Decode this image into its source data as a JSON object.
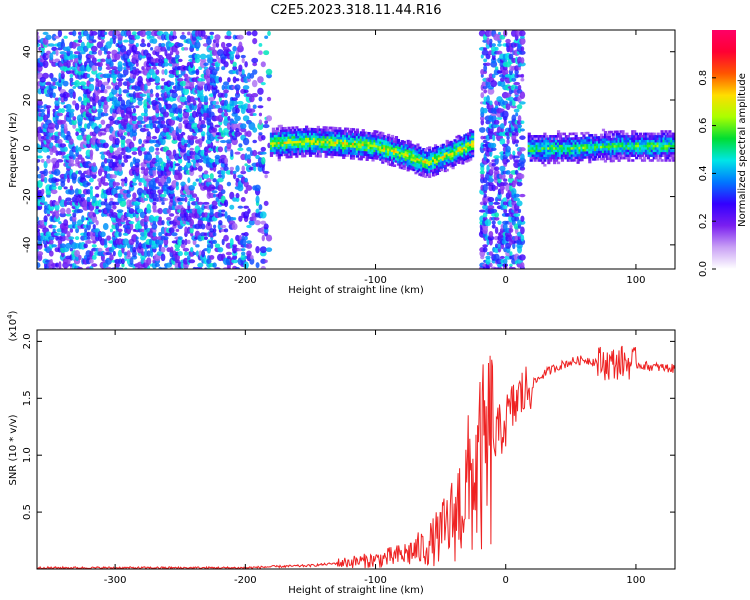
{
  "title": "C2E5.2023.318.11.44.R16",
  "chart_data": [
    {
      "type": "heatmap",
      "xlabel": "Height of straight line (km)",
      "ylabel": "Frequency (Hz)",
      "xlim": [
        -360,
        130
      ],
      "ylim": [
        -50,
        49
      ],
      "xticks": [
        -300,
        -200,
        -100,
        0,
        100
      ],
      "yticks": [
        -40,
        -20,
        0,
        20,
        40
      ],
      "colorbar": {
        "label": "Normalized spectral amplitude",
        "range": [
          0,
          1
        ],
        "ticks": [
          "0.0",
          "0.2",
          "0.4",
          "0.6",
          "0.8"
        ],
        "colors": [
          "#ffffff",
          "#c9a0f5",
          "#7a1ff0",
          "#3300ff",
          "#0077ff",
          "#00e6e6",
          "#00dd33",
          "#aaff00",
          "#ffdd00",
          "#ff5500",
          "#ff0033",
          "#ff0066"
        ]
      },
      "features": [
        {
          "name": "noise",
          "x_range": [
            -360,
            -180
          ],
          "amplitude": 0.3
        },
        {
          "name": "signal",
          "x": [
            -180,
            -150,
            -120,
            -100,
            -80,
            -60,
            -40,
            -25
          ],
          "y": [
            2,
            3,
            2,
            1,
            -2,
            -6,
            -2,
            2
          ],
          "amplitude": 0.65
        },
        {
          "name": "noise",
          "x_range": [
            -18,
            14
          ],
          "amplitude": 0.3
        },
        {
          "name": "signal",
          "x": [
            18,
            50,
            90,
            130
          ],
          "y": [
            0,
            0,
            1,
            1
          ],
          "amplitude": 0.55
        }
      ],
      "grid": false
    },
    {
      "type": "line",
      "xlabel": "Height of straight line (km)",
      "ylabel": "SNR (10 * v/v)",
      "y_multiplier": "(x10^4)",
      "xlim": [
        -360,
        130
      ],
      "ylim": [
        0,
        2.1
      ],
      "xticks": [
        -300,
        -200,
        -100,
        0,
        100
      ],
      "yticks": [
        0.5,
        1.0,
        1.5,
        2.0
      ],
      "series": [
        {
          "color": "#ee2222",
          "x": [
            -360,
            -300,
            -250,
            -200,
            -180,
            -150,
            -120,
            -100,
            -80,
            -60,
            -50,
            -40,
            -30,
            -20,
            -10,
            0,
            10,
            20,
            30,
            40,
            50,
            60,
            70,
            80,
            90,
            100,
            110,
            120,
            130
          ],
          "y": [
            0.01,
            0.01,
            0.01,
            0.01,
            0.02,
            0.03,
            0.06,
            0.08,
            0.12,
            0.2,
            0.3,
            0.45,
            0.7,
            0.9,
            1.1,
            1.3,
            1.5,
            1.62,
            1.72,
            1.78,
            1.82,
            1.84,
            1.82,
            1.8,
            1.82,
            1.8,
            1.78,
            1.77,
            1.76
          ]
        }
      ],
      "grid": false
    }
  ]
}
